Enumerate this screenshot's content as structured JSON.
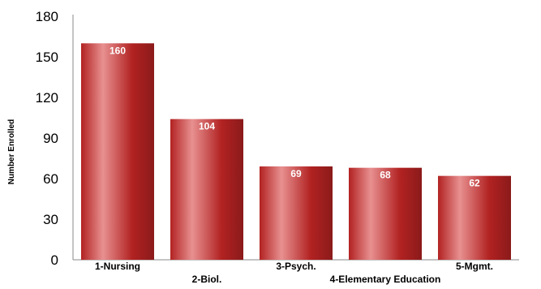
{
  "chart_data": {
    "type": "bar",
    "title": "",
    "xlabel": "",
    "ylabel": "Number Enrolled",
    "categories": [
      "1-Nursing",
      "2-Biol.",
      "3-Psych.",
      "4-Elementary Education",
      "5-Mgmt."
    ],
    "values": [
      160,
      104,
      69,
      68,
      62
    ],
    "data_labels": [
      "160",
      "104",
      "69",
      "68",
      "62"
    ],
    "ylim": [
      0,
      180
    ],
    "yticks": [
      0,
      30,
      60,
      90,
      120,
      150,
      180
    ],
    "ytick_labels": [
      "0",
      "30",
      "60",
      "90",
      "120",
      "150",
      "180"
    ],
    "grid": false,
    "legend": "none",
    "bar_color": "#b22222",
    "bar_highlight_color": "#e89090"
  }
}
